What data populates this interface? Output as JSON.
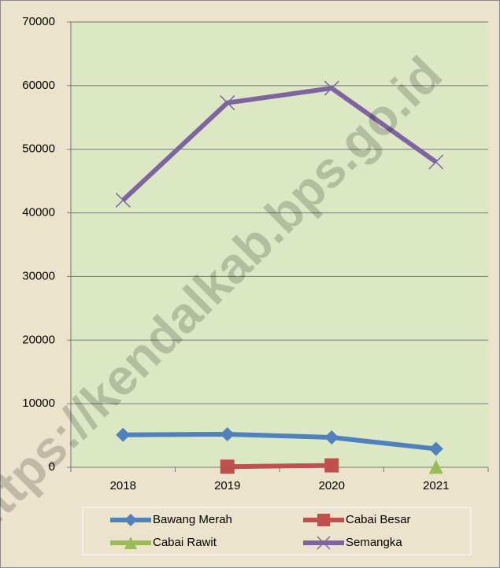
{
  "chart_data": {
    "type": "line",
    "categories": [
      "2018",
      "2019",
      "2020",
      "2021"
    ],
    "series": [
      {
        "name": "Bawang Merah",
        "color": "#4f81bd",
        "marker": "diamond",
        "values": [
          5100,
          5200,
          4700,
          2900
        ]
      },
      {
        "name": "Cabai Besar",
        "color": "#c0504d",
        "marker": "square",
        "values": [
          null,
          100,
          300,
          null
        ]
      },
      {
        "name": "Cabai Rawit",
        "color": "#9bbb59",
        "marker": "triangle",
        "values": [
          null,
          null,
          null,
          100
        ]
      },
      {
        "name": "Semangka",
        "color": "#8064a2",
        "marker": "x",
        "values": [
          42000,
          57300,
          59600,
          48000
        ]
      }
    ],
    "ylim": [
      0,
      70000
    ],
    "yticks": [
      0,
      10000,
      20000,
      30000,
      40000,
      50000,
      60000,
      70000
    ],
    "grid": true,
    "legend": "bottom",
    "watermark": "https://kendalkab.bps.go.id"
  }
}
